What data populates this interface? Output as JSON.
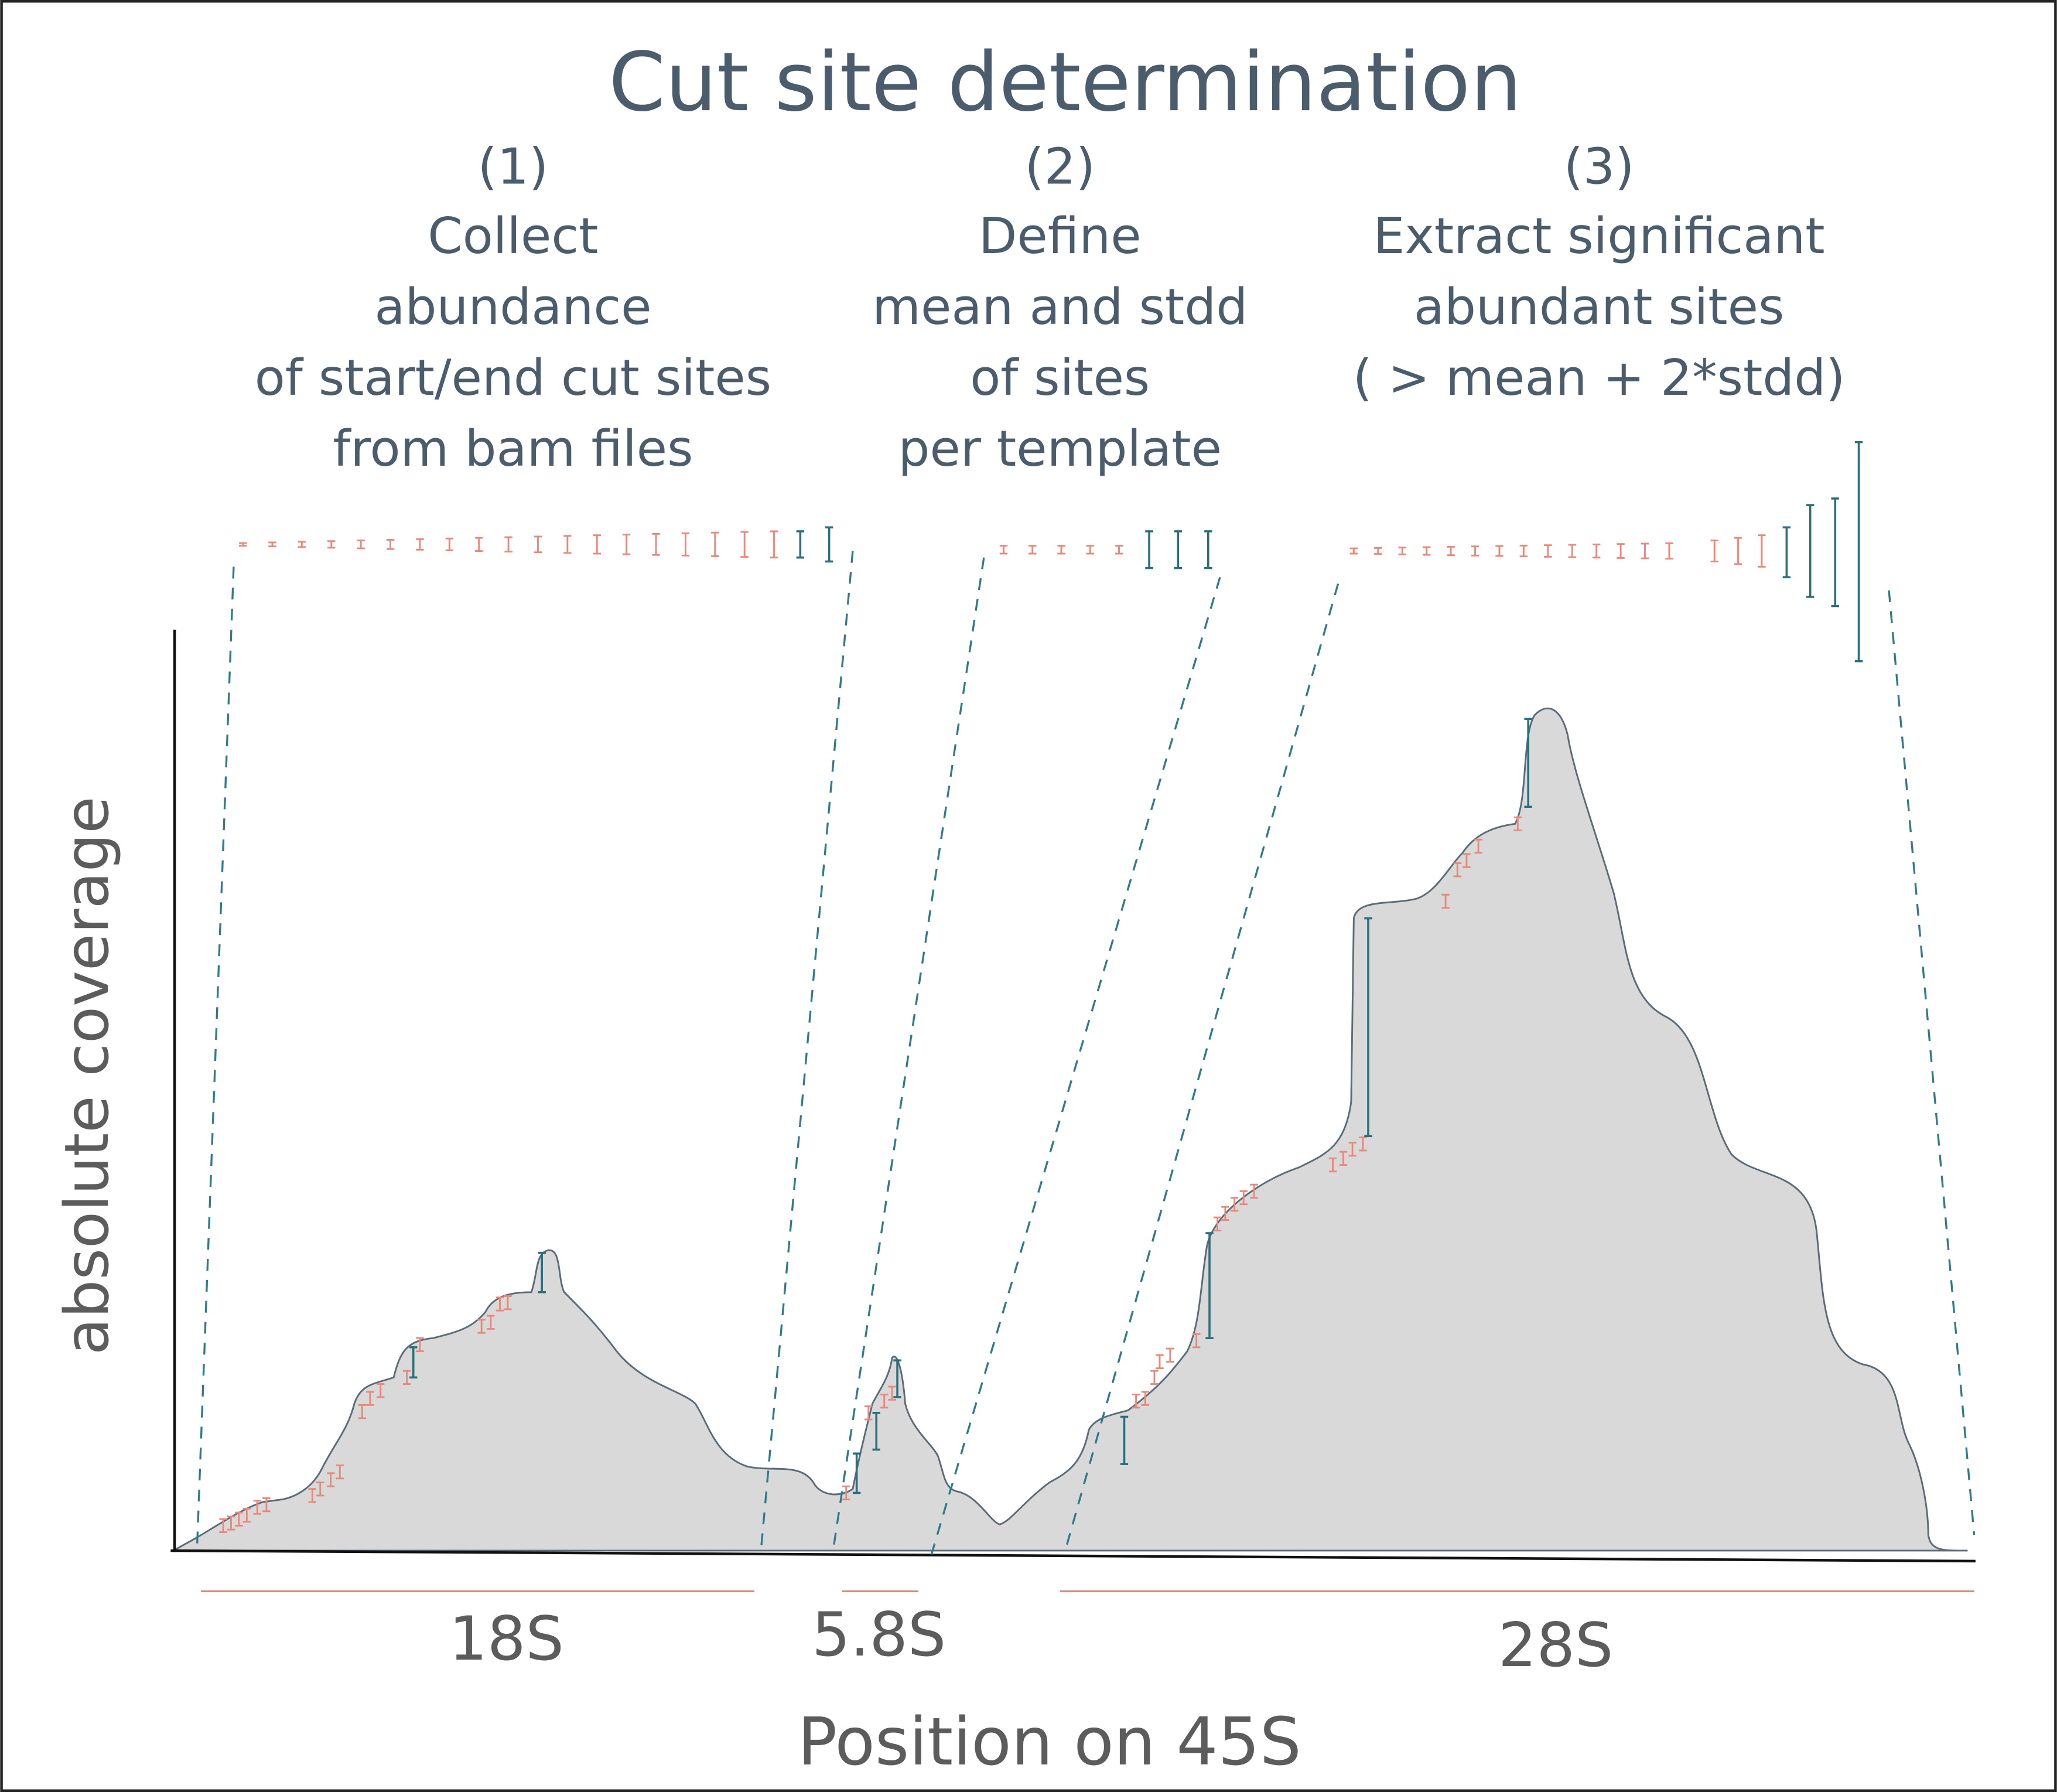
{
  "title": "Cut site determination",
  "steps": [
    {
      "number": "(1)",
      "lines": [
        "Collect",
        "abundance",
        "of start/end cut sites",
        "from bam files"
      ]
    },
    {
      "number": "(2)",
      "lines": [
        "Define",
        "mean and stdd",
        "of sites",
        "per template"
      ]
    },
    {
      "number": "(3)",
      "lines": [
        "Extract significant",
        "abundant sites",
        "( > mean + 2*stdd)"
      ]
    }
  ],
  "y_axis_label": "absolute coverage",
  "segments": [
    {
      "label": "18S"
    },
    {
      "label": "5.8S"
    },
    {
      "label": "28S"
    }
  ],
  "x_axis_label": "Position on 45S"
}
